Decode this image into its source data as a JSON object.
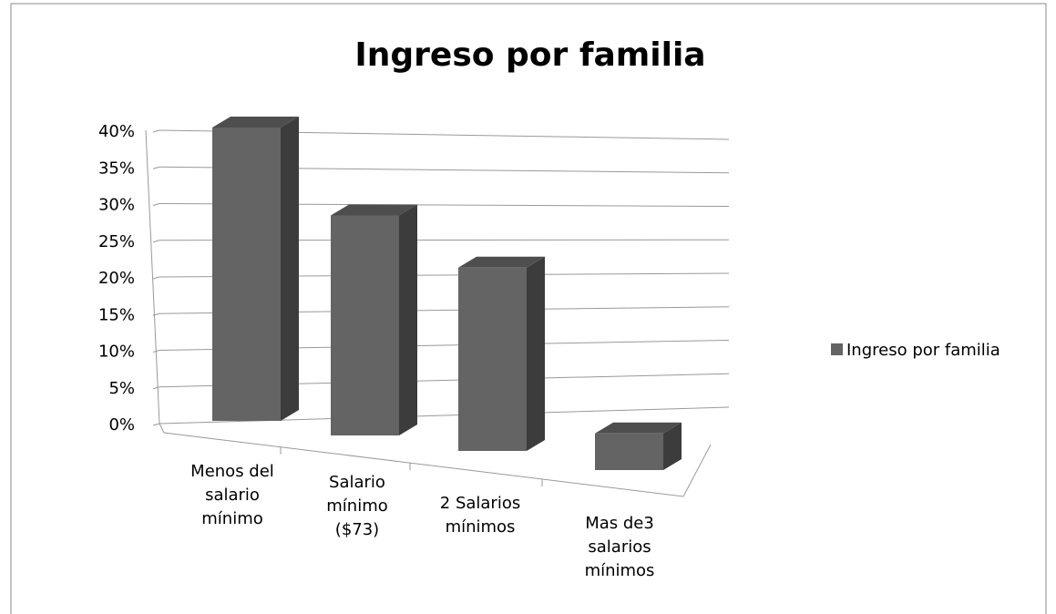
{
  "chart_data": {
    "type": "bar3d",
    "title": "Ingreso por familia",
    "categories": [
      "Menos del salario mínimo",
      "Salario mínimo ($73)",
      "2 Salarios mínimos",
      "Mas de3 salarios mínimos"
    ],
    "series": [
      {
        "name": "Ingreso por familia",
        "color": "#646464",
        "values": [
          40,
          30,
          25,
          5
        ]
      }
    ],
    "ylim": [
      0,
      40
    ],
    "yticks": [
      {
        "value": 0,
        "label": "0%"
      },
      {
        "value": 5,
        "label": "5%"
      },
      {
        "value": 10,
        "label": "10%"
      },
      {
        "value": 15,
        "label": "15%"
      },
      {
        "value": 20,
        "label": "20%"
      },
      {
        "value": 25,
        "label": "25%"
      },
      {
        "value": 30,
        "label": "30%"
      },
      {
        "value": 35,
        "label": "35%"
      },
      {
        "value": 40,
        "label": "40%"
      }
    ],
    "grid": true,
    "legend": "right"
  }
}
